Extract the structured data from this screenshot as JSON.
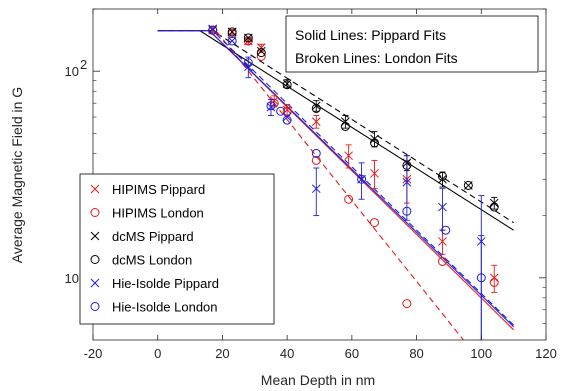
{
  "chart_data": {
    "type": "scatter",
    "title": "",
    "xlabel": "Mean Depth in nm",
    "ylabel": "Average Magnetic Field in G",
    "xlim": [
      -20,
      120
    ],
    "ylim": [
      5,
      200
    ],
    "yscale": "log",
    "x_ticks": [
      -20,
      0,
      20,
      40,
      60,
      80,
      100,
      120
    ],
    "y_ticks": [
      {
        "value": 10,
        "label": "10",
        "exp": "1"
      },
      {
        "value": 100,
        "label": "10",
        "exp": "2"
      }
    ],
    "grid": false,
    "legend_position": "bottom-left",
    "annotation": [
      "Solid Lines: Pippard Fits",
      "Broken Lines: London Fits"
    ],
    "colors": {
      "red": "#e31a1c",
      "black": "#000000",
      "blue": "#1f1fd6"
    },
    "series": [
      {
        "name": "HIPIMS Pippard",
        "marker": "x",
        "color": "red",
        "points": [
          [
            17,
            158
          ],
          [
            23,
            155
          ],
          [
            28,
            140
          ],
          [
            32,
            130
          ],
          [
            36,
            72
          ],
          [
            40,
            65
          ],
          [
            49,
            57
          ],
          [
            59,
            39
          ],
          [
            67,
            32
          ],
          [
            77,
            30
          ],
          [
            88,
            15
          ],
          [
            104,
            10
          ]
        ],
        "errors": [
          [
            17,
            4
          ],
          [
            23,
            4
          ],
          [
            28,
            5
          ],
          [
            32,
            5
          ],
          [
            36,
            4
          ],
          [
            40,
            4
          ],
          [
            49,
            4
          ],
          [
            59,
            5
          ],
          [
            67,
            5
          ],
          [
            77,
            7
          ],
          [
            88,
            2
          ],
          [
            104,
            1.5
          ]
        ]
      },
      {
        "name": "HIPIMS London",
        "marker": "o",
        "color": "red",
        "points": [
          [
            17,
            158
          ],
          [
            23,
            152
          ],
          [
            28,
            140
          ],
          [
            32,
            118
          ],
          [
            36,
            70
          ],
          [
            40,
            64
          ],
          [
            49,
            37
          ],
          [
            59,
            24
          ],
          [
            67,
            18.5
          ],
          [
            77,
            7.5
          ],
          [
            88,
            12
          ],
          [
            104,
            9.5
          ]
        ]
      },
      {
        "name": "dcMS Pippard",
        "marker": "x",
        "color": "black",
        "points": [
          [
            17,
            160
          ],
          [
            23,
            155
          ],
          [
            28,
            145
          ],
          [
            32,
            125
          ],
          [
            40,
            87
          ],
          [
            49,
            68
          ],
          [
            58,
            57
          ],
          [
            67,
            47
          ],
          [
            77,
            36
          ],
          [
            88,
            30
          ],
          [
            96,
            28
          ],
          [
            104,
            23
          ]
        ],
        "errors": [
          [
            40,
            4
          ],
          [
            49,
            4
          ],
          [
            58,
            4
          ],
          [
            67,
            4
          ],
          [
            77,
            3
          ],
          [
            88,
            2.5
          ],
          [
            104,
            1.5
          ]
        ]
      },
      {
        "name": "dcMS London",
        "marker": "o",
        "color": "black",
        "points": [
          [
            17,
            158
          ],
          [
            23,
            155
          ],
          [
            28,
            145
          ],
          [
            32,
            123
          ],
          [
            40,
            86
          ],
          [
            49,
            66
          ],
          [
            58,
            54
          ],
          [
            67,
            45
          ],
          [
            77,
            35
          ],
          [
            88,
            31
          ],
          [
            96,
            28
          ],
          [
            104,
            22
          ]
        ]
      },
      {
        "name": "Hie-Isolde Pippard",
        "marker": "x",
        "color": "blue",
        "points": [
          [
            17,
            160
          ],
          [
            23,
            140
          ],
          [
            28,
            105
          ],
          [
            35,
            67
          ],
          [
            40,
            60
          ],
          [
            49,
            27
          ],
          [
            63,
            30
          ],
          [
            77,
            29
          ],
          [
            88,
            22
          ],
          [
            100,
            15
          ]
        ],
        "errors": [
          [
            28,
            12
          ],
          [
            35,
            6
          ],
          [
            49,
            7
          ],
          [
            63,
            6
          ],
          [
            77,
            10
          ],
          [
            88,
            5
          ],
          [
            100,
            10
          ]
        ]
      },
      {
        "name": "Hie-Isolde London",
        "marker": "o",
        "color": "blue",
        "points": [
          [
            17,
            158
          ],
          [
            23,
            140
          ],
          [
            28,
            110
          ],
          [
            35,
            68
          ],
          [
            38,
            64
          ],
          [
            40,
            58
          ],
          [
            49,
            40
          ],
          [
            63,
            30
          ],
          [
            77,
            21
          ],
          [
            89,
            17
          ],
          [
            100,
            10
          ]
        ],
        "errors": [
          [
            100,
            6
          ]
        ]
      }
    ],
    "fit_lines": [
      {
        "color": "black",
        "style": "solid",
        "from": [
          0,
          157
        ],
        "plateau_until": 13,
        "to": [
          110,
          17
        ]
      },
      {
        "color": "black",
        "style": "dashed",
        "from": [
          0,
          157
        ],
        "plateau_until": 17,
        "to": [
          110,
          18.5
        ]
      },
      {
        "color": "red",
        "style": "solid",
        "from": [
          0,
          157
        ],
        "plateau_until": 16,
        "to": [
          110,
          5.6
        ]
      },
      {
        "color": "red",
        "style": "dashed",
        "from": [
          0,
          157
        ],
        "plateau_until": 18,
        "to": [
          100,
          3.9
        ]
      },
      {
        "color": "blue",
        "style": "solid",
        "from": [
          0,
          157
        ],
        "plateau_until": 16,
        "to": [
          110,
          5.8
        ]
      },
      {
        "color": "blue",
        "style": "dashed",
        "from": [
          0,
          157
        ],
        "plateau_until": 17,
        "to": [
          110,
          5.9
        ]
      }
    ]
  }
}
